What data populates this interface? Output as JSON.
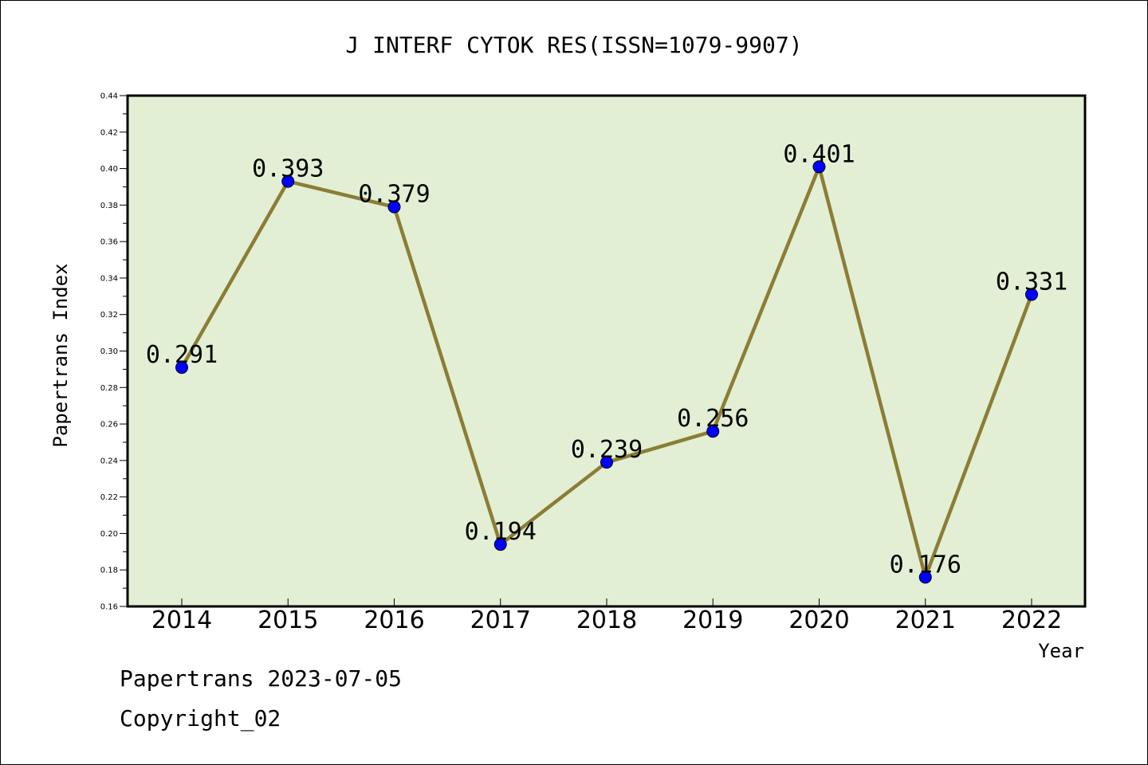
{
  "chart_data": {
    "type": "line",
    "title": "J INTERF CYTOK RES(ISSN=1079-9907)",
    "xlabel": "Year",
    "ylabel": "Papertrans Index",
    "categories": [
      "2014",
      "2015",
      "2016",
      "2017",
      "2018",
      "2019",
      "2020",
      "2021",
      "2022"
    ],
    "series": [
      {
        "values": [
          0.291,
          0.393,
          0.379,
          0.194,
          0.239,
          0.256,
          0.401,
          0.176,
          0.331
        ],
        "data_labels": [
          "0.291",
          "0.393",
          "0.379",
          "0.194",
          "0.239",
          "0.256",
          "0.401",
          "0.176",
          "0.331"
        ]
      }
    ],
    "ylim": [
      0.16,
      0.44
    ],
    "yticks": [
      "0.16",
      "0.18",
      "0.20",
      "0.22",
      "0.24",
      "0.26",
      "0.28",
      "0.30",
      "0.32",
      "0.34",
      "0.36",
      "0.38",
      "0.40",
      "0.42",
      "0.44"
    ],
    "grid": false,
    "legend": "none",
    "colors": {
      "plot_background": "#e2efd4",
      "line": "#8b7d35",
      "marker": "#0000ff"
    }
  },
  "footer": {
    "line1": "Papertrans 2023-07-05",
    "line2": "Copyright_02"
  }
}
